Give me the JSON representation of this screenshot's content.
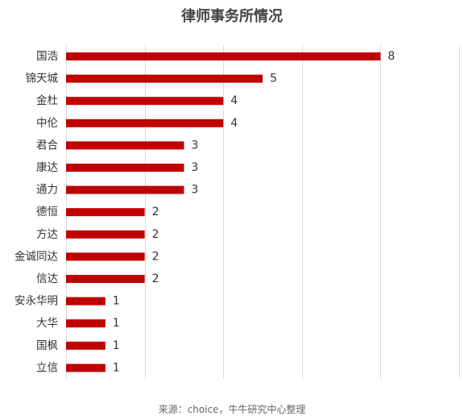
{
  "chart_data": {
    "type": "bar",
    "orientation": "horizontal",
    "title": "律师事务所情况",
    "categories": [
      "国浩",
      "锦天城",
      "金杜",
      "中伦",
      "君合",
      "康达",
      "通力",
      "德恒",
      "方达",
      "金诚同达",
      "信达",
      "安永华明",
      "大华",
      "国枫",
      "立信"
    ],
    "values": [
      8,
      5,
      4,
      4,
      3,
      3,
      3,
      2,
      2,
      2,
      2,
      1,
      1,
      1,
      1
    ],
    "xlim": [
      0,
      10
    ],
    "grid": true,
    "bar_color": "#C00000",
    "gridline_color": "#D9D9D9",
    "source": "来源：choice，牛牛研究中心整理"
  }
}
